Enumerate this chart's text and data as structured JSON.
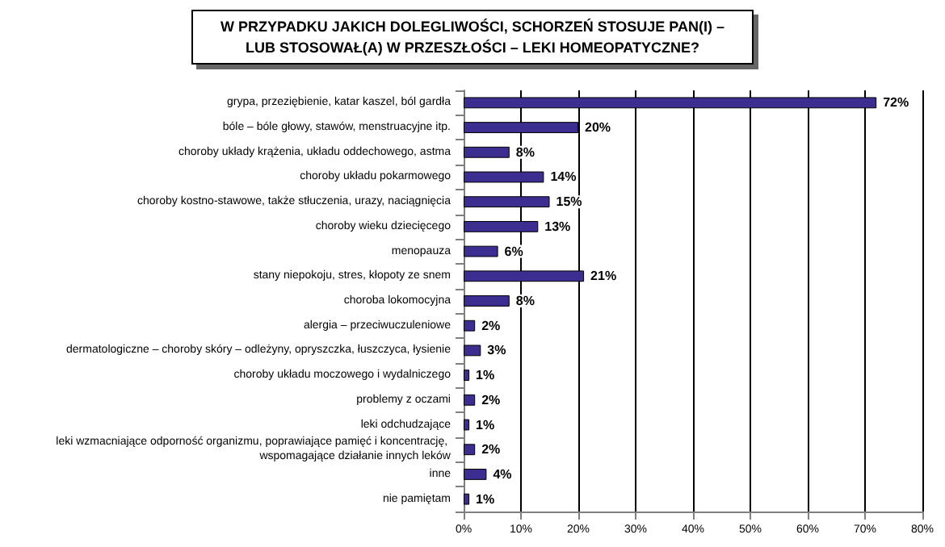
{
  "chart_data": {
    "type": "bar",
    "orientation": "horizontal",
    "title": "W PRZYPADKU JAKICH DOLEGLIWOŚCI, SCHORZEŃ STOSUJE PAN(I) –\nLUB STOSOWAŁ(A) W PRZESZŁOŚCI – LEKI HOMEOPATYCZNE?",
    "categories": [
      "grypa, przeziębienie, katar kaszel, ból gardła",
      "bóle – bóle głowy, stawów, menstruacyjne itp.",
      "choroby układy krążenia, układu oddechowego, astma",
      "choroby układu pokarmowego",
      "choroby kostno-stawowe, także stłuczenia, urazy, naciągnięcia",
      "choroby wieku dziecięcego",
      "menopauza",
      "stany niepokoju, stres, kłopoty ze snem",
      "choroba lokomocyjna",
      "alergia – przeciwuczuleniowe",
      "dermatologiczne – choroby skóry – odleżyny, opryszczka, łuszczyca, łysienie",
      "choroby układu moczowego i wydalniczego",
      "problemy z oczami",
      "leki odchudzające",
      "leki wzmacniające odporność organizmu, poprawiające pamięć i koncentrację, wspomagające działanie innych leków",
      "inne",
      "nie pamiętam"
    ],
    "values": [
      72,
      20,
      8,
      14,
      15,
      13,
      6,
      21,
      8,
      2,
      3,
      1,
      2,
      1,
      2,
      4,
      1
    ],
    "value_labels": [
      "72%",
      "20%",
      "8%",
      "14%",
      "15%",
      "13%",
      "6%",
      "21%",
      "8%",
      "2%",
      "3%",
      "1%",
      "2%",
      "1%",
      "2%",
      "4%",
      "1%"
    ],
    "color": "#3c2d91",
    "xlim": [
      0,
      80
    ],
    "xticks": [
      {
        "value": 0,
        "label": "0%"
      },
      {
        "value": 10,
        "label": "10%"
      },
      {
        "value": 20,
        "label": "20%"
      },
      {
        "value": 30,
        "label": "30%"
      },
      {
        "value": 40,
        "label": "40%"
      },
      {
        "value": 50,
        "label": "50%"
      },
      {
        "value": 60,
        "label": "60%"
      },
      {
        "value": 70,
        "label": "70%"
      },
      {
        "value": 80,
        "label": "80%"
      }
    ],
    "grid": "x"
  }
}
